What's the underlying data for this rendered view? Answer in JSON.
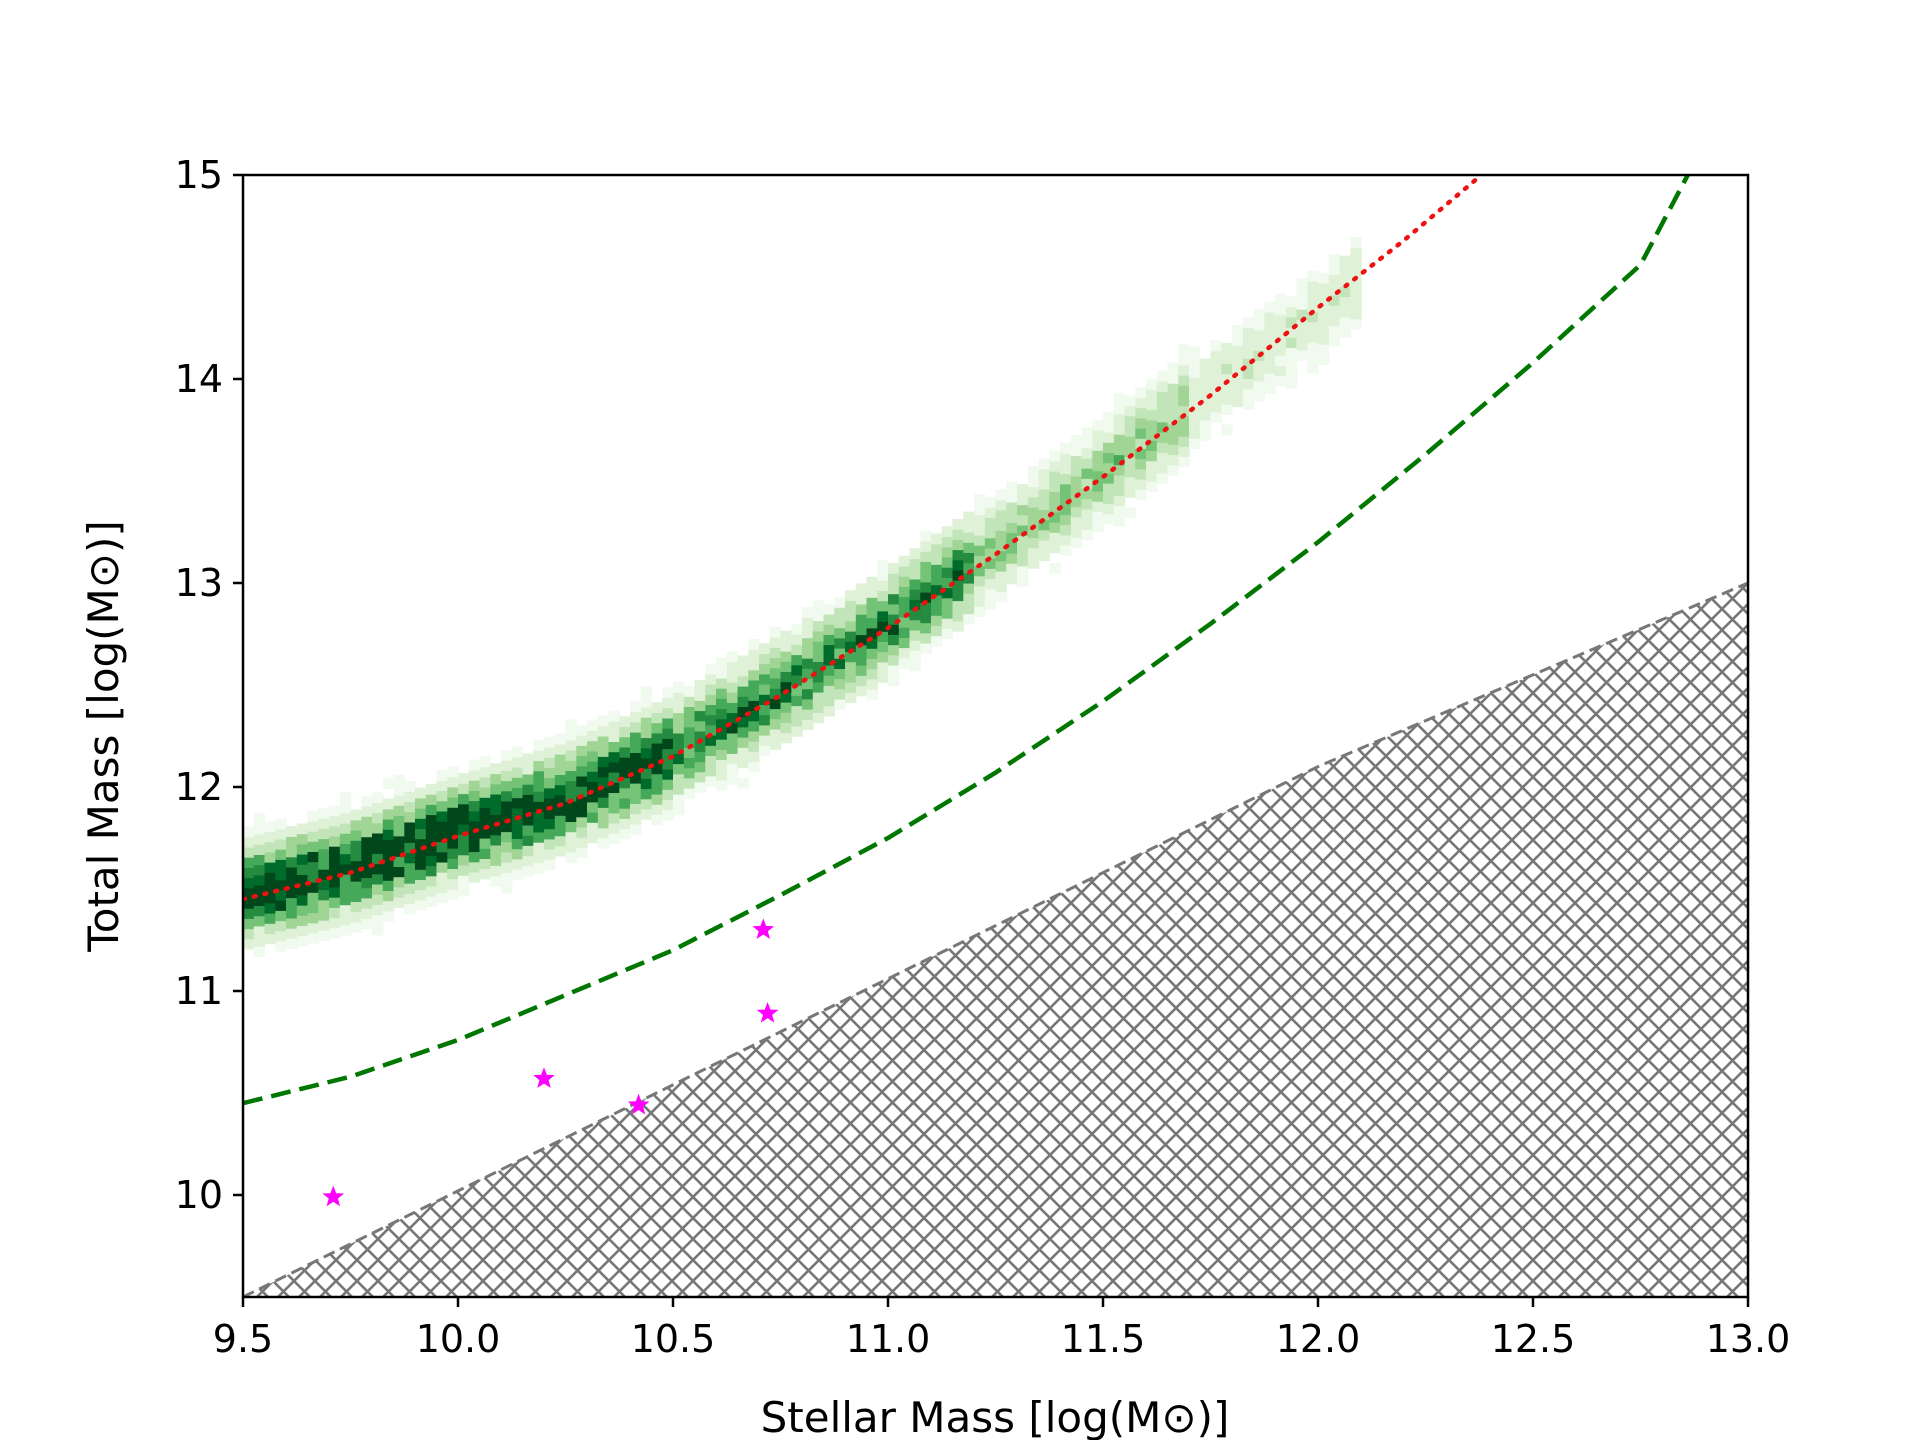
{
  "chart_data": {
    "type": "scatter",
    "xlabel": "Stellar Mass [log(M⊙)]",
    "ylabel": "Total Mass [log(M⊙)]",
    "xlim": [
      9.5,
      13.0
    ],
    "ylim": [
      9.5,
      15.0
    ],
    "xticks": [
      9.5,
      10.0,
      10.5,
      11.0,
      11.5,
      12.0,
      12.5,
      13.0
    ],
    "xtick_labels": [
      "9.5",
      "10.0",
      "10.5",
      "11.0",
      "11.5",
      "12.0",
      "12.5",
      "13.0"
    ],
    "yticks": [
      10,
      11,
      12,
      13,
      14,
      15
    ],
    "ytick_labels": [
      "10",
      "11",
      "12",
      "13",
      "14",
      "15"
    ],
    "grid": false,
    "legend": "none",
    "series": [
      {
        "type": "line",
        "style": "dotted",
        "color": "#ee1111",
        "x": [
          9.5,
          9.75,
          10.0,
          10.25,
          10.5,
          10.75,
          11.0,
          11.25,
          11.5,
          11.75,
          12.0,
          12.2,
          12.38
        ],
        "y": [
          11.45,
          11.58,
          11.76,
          11.92,
          12.15,
          12.45,
          12.78,
          13.14,
          13.52,
          13.92,
          14.35,
          14.68,
          15.0
        ]
      },
      {
        "type": "line",
        "style": "dashed",
        "color": "#007700",
        "x": [
          9.5,
          9.75,
          10.0,
          10.25,
          10.5,
          10.75,
          11.0,
          11.25,
          11.5,
          11.75,
          12.0,
          12.25,
          12.5,
          12.75,
          12.86
        ],
        "y": [
          10.45,
          10.58,
          10.76,
          10.98,
          11.2,
          11.47,
          11.75,
          12.07,
          12.42,
          12.8,
          13.2,
          13.63,
          14.08,
          14.56,
          15.0
        ]
      },
      {
        "type": "scatter",
        "marker": "star",
        "color": "#ff00ff",
        "x": [
          9.71,
          10.2,
          10.42,
          10.71,
          10.72
        ],
        "y": [
          9.99,
          10.57,
          10.44,
          11.3,
          10.89
        ]
      }
    ],
    "hatched_region": {
      "color": "#777777",
      "pattern": "crosshatch",
      "boundary": [
        [
          9.5,
          9.5
        ],
        [
          12.0,
          12.1
        ],
        [
          13.0,
          13.0
        ]
      ]
    },
    "density": {
      "colormap": "Greens",
      "ridge": [
        [
          9.5,
          11.45
        ],
        [
          9.75,
          11.58
        ],
        [
          10.0,
          11.76
        ],
        [
          10.25,
          11.92
        ],
        [
          10.5,
          12.15
        ],
        [
          10.75,
          12.45
        ],
        [
          11.0,
          12.78
        ],
        [
          11.25,
          13.14
        ],
        [
          11.5,
          13.52
        ],
        [
          11.75,
          13.92
        ],
        [
          12.0,
          14.3
        ],
        [
          12.15,
          14.55
        ]
      ],
      "x_range": [
        9.5,
        12.1
      ]
    }
  }
}
